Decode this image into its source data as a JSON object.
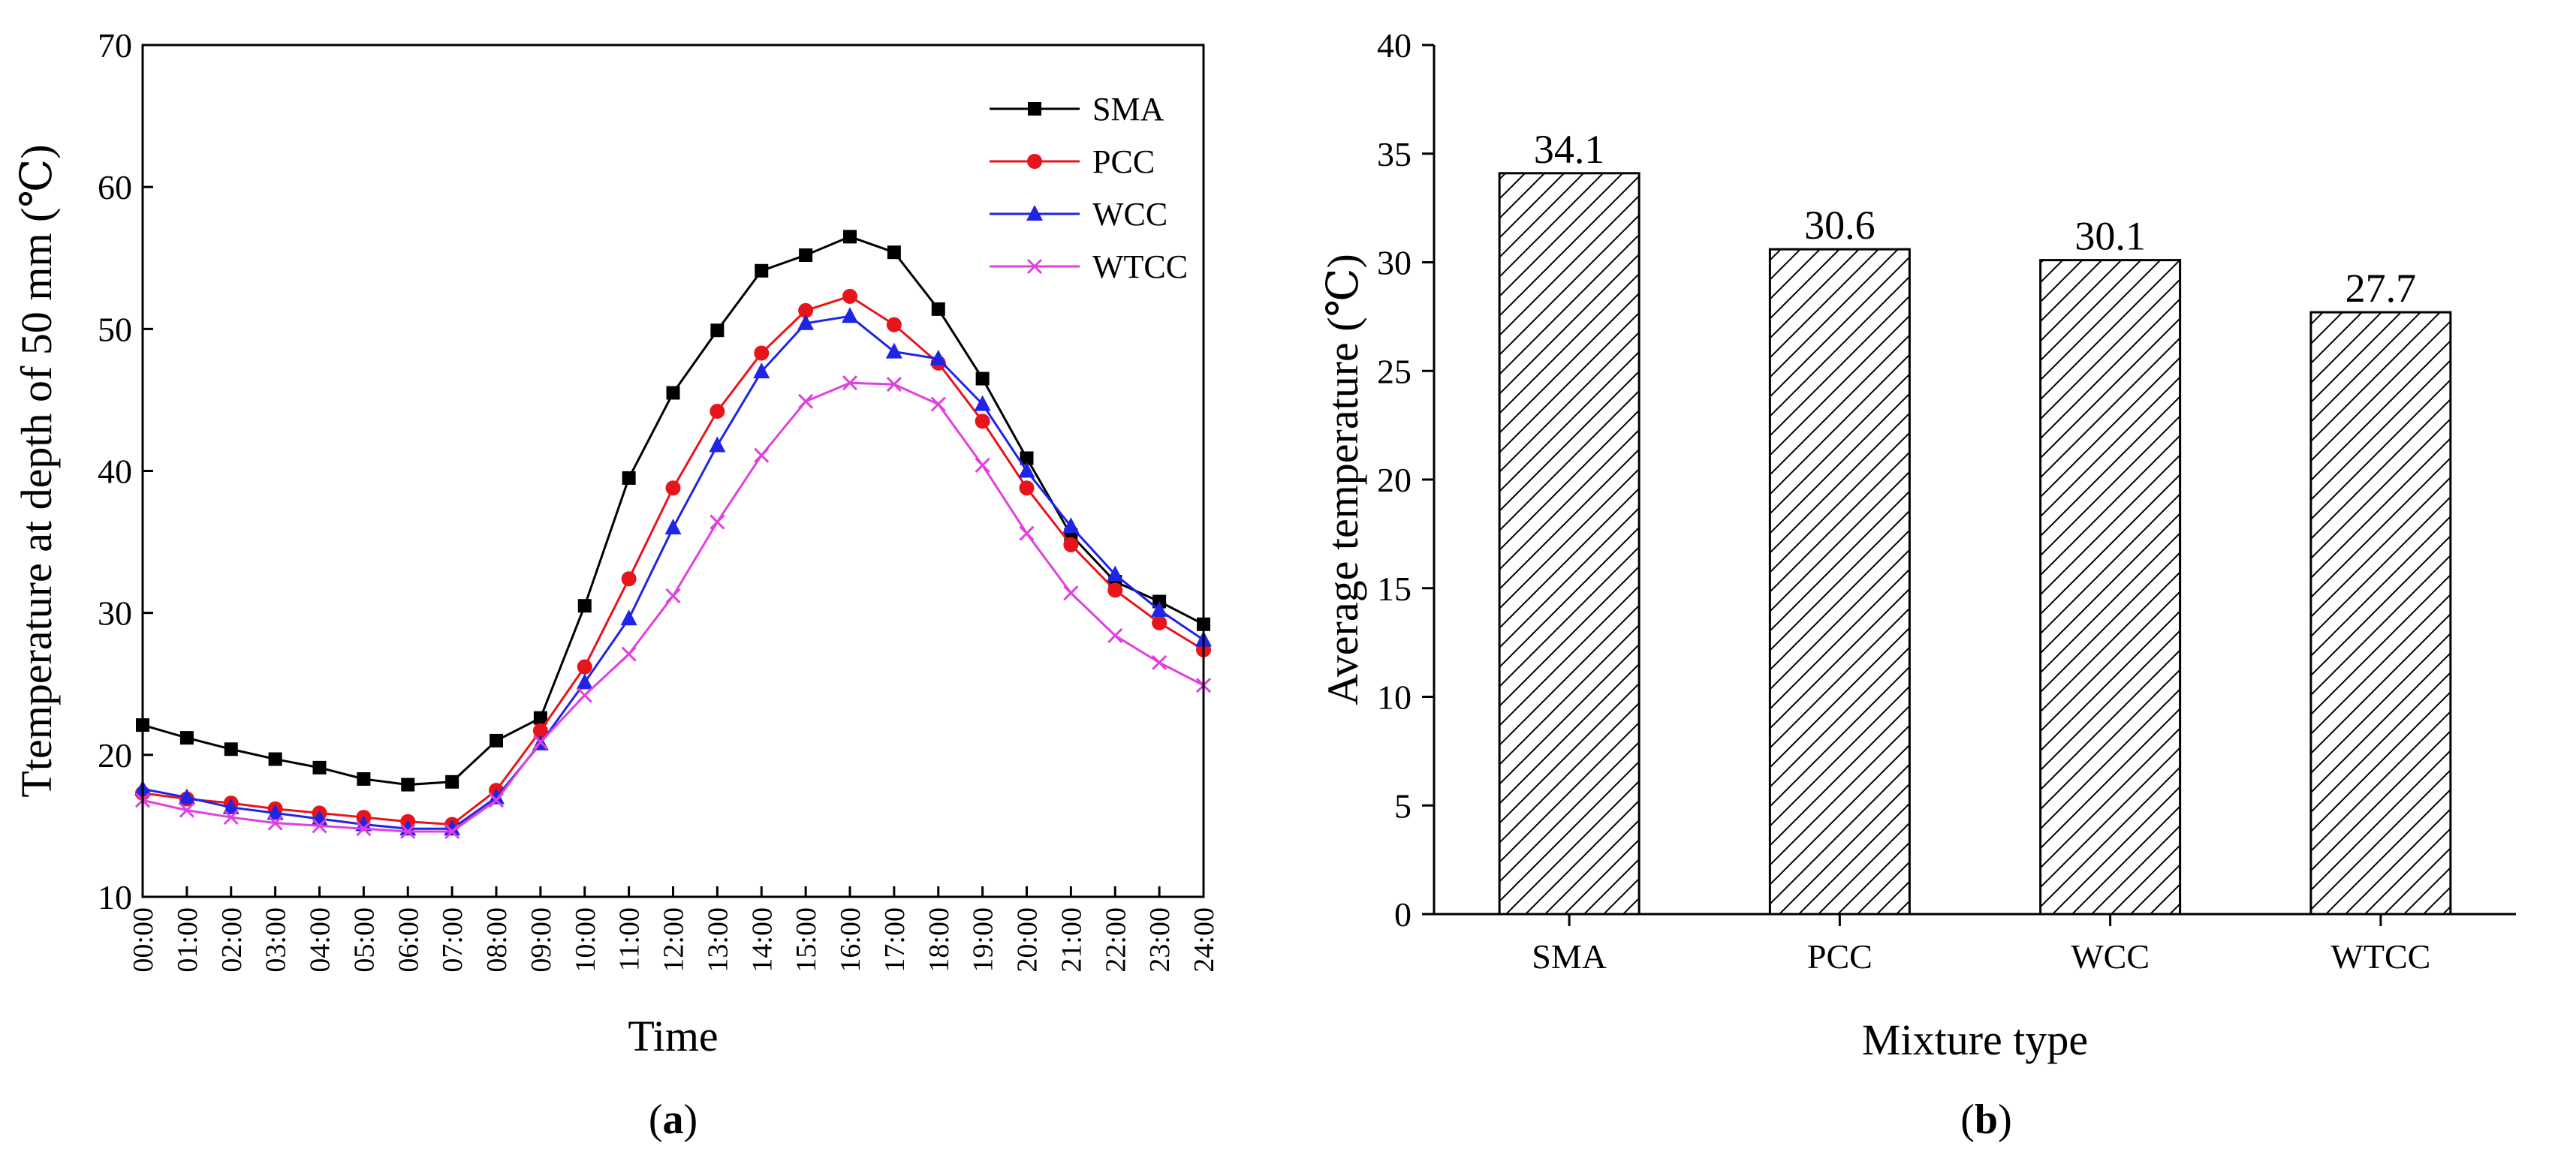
{
  "chart_data": [
    {
      "type": "line",
      "panel_label_prefix": "(",
      "panel_label": "a",
      "panel_label_suffix": ")",
      "title": "",
      "xlabel": "Time",
      "ylabel": "Ttemperature at depth of 50 mm (℃)",
      "ylim": [
        10,
        70
      ],
      "yticks": [
        10,
        20,
        30,
        40,
        50,
        60,
        70
      ],
      "categories": [
        "00:00",
        "01:00",
        "02:00",
        "03:00",
        "04:00",
        "05:00",
        "06:00",
        "07:00",
        "08:00",
        "09:00",
        "10:00",
        "11:00",
        "12:00",
        "13:00",
        "14:00",
        "15:00",
        "16:00",
        "17:00",
        "18:00",
        "19:00",
        "20:00",
        "21:00",
        "22:00",
        "23:00",
        "24:00"
      ],
      "legend_position": "top-right",
      "series": [
        {
          "name": "SMA",
          "color": "#000000",
          "marker": "square",
          "values": [
            22.1,
            21.2,
            20.4,
            19.7,
            19.1,
            18.3,
            17.9,
            18.1,
            21.0,
            22.6,
            30.5,
            39.5,
            45.5,
            49.9,
            54.1,
            55.2,
            56.5,
            55.4,
            51.4,
            46.5,
            40.9,
            35.5,
            32.2,
            30.8,
            29.2
          ]
        },
        {
          "name": "PCC",
          "color": "#e8141c",
          "marker": "circle",
          "values": [
            17.3,
            16.9,
            16.6,
            16.2,
            15.9,
            15.6,
            15.3,
            15.1,
            17.5,
            21.7,
            26.2,
            32.4,
            38.8,
            44.2,
            48.3,
            51.3,
            52.3,
            50.3,
            47.6,
            43.5,
            38.8,
            34.8,
            31.6,
            29.3,
            27.4
          ]
        },
        {
          "name": "WCC",
          "color": "#1f24e6",
          "marker": "triangle",
          "values": [
            17.6,
            17.0,
            16.3,
            15.9,
            15.5,
            15.1,
            14.8,
            14.8,
            17.0,
            20.8,
            25.1,
            29.6,
            36.0,
            41.8,
            47.0,
            50.4,
            50.9,
            48.4,
            47.9,
            44.7,
            40.0,
            36.1,
            32.7,
            30.2,
            28.1
          ]
        },
        {
          "name": "WTCC",
          "color": "#e040e0",
          "marker": "x",
          "values": [
            16.8,
            16.1,
            15.6,
            15.2,
            15.0,
            14.8,
            14.6,
            14.6,
            16.8,
            20.9,
            24.2,
            27.1,
            31.2,
            36.4,
            41.1,
            44.9,
            46.2,
            46.1,
            44.7,
            40.4,
            35.6,
            31.4,
            28.4,
            26.5,
            24.9
          ]
        }
      ]
    },
    {
      "type": "bar",
      "panel_label_prefix": "(",
      "panel_label": "b",
      "panel_label_suffix": ")",
      "title": "",
      "xlabel": "Mixture type",
      "ylabel": "Average temperature (℃)",
      "ylim": [
        0,
        40
      ],
      "yticks": [
        0,
        5,
        10,
        15,
        20,
        25,
        30,
        35,
        40
      ],
      "categories": [
        "SMA",
        "PCC",
        "WCC",
        "WTCC"
      ],
      "values": [
        34.1,
        30.6,
        30.1,
        27.7
      ],
      "value_labels": [
        "34.1",
        "30.6",
        "30.1",
        "27.7"
      ],
      "fill": "hatched"
    }
  ]
}
